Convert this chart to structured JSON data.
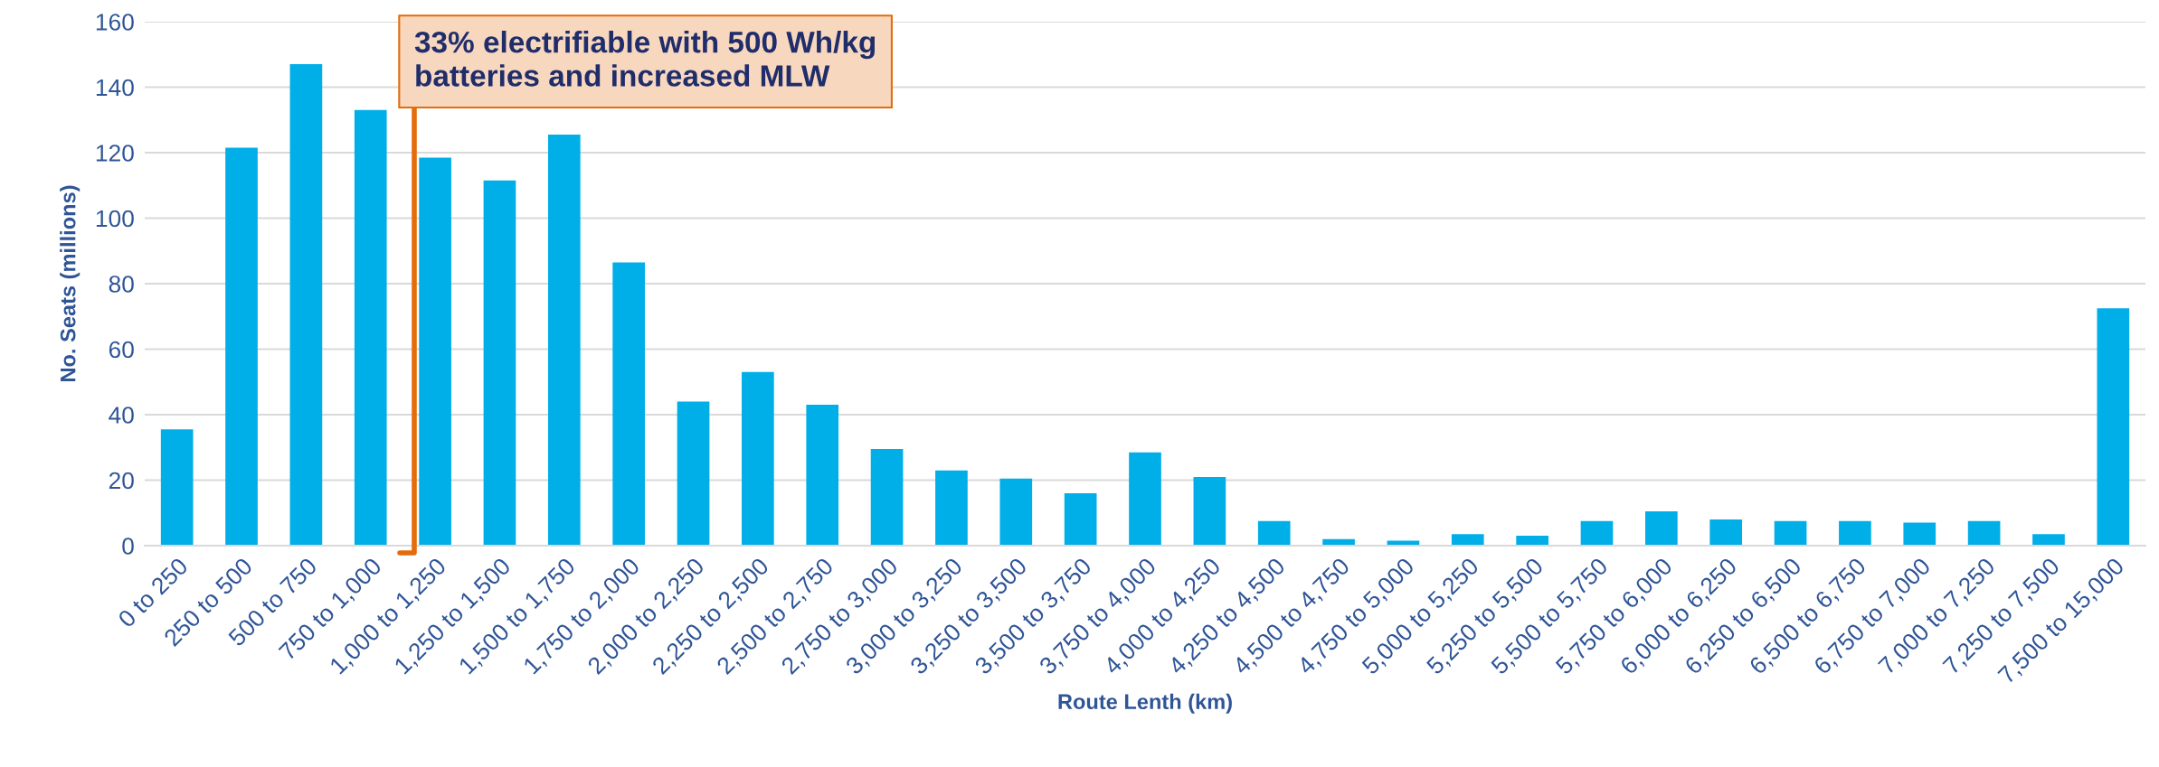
{
  "chart_data": {
    "type": "bar",
    "xlabel": "Route Lenth (km)",
    "ylabel": "No. Seats (millions)",
    "categories": [
      "0 to 250",
      "250 to 500",
      "500 to 750",
      "750 to 1,000",
      "1,000 to 1,250",
      "1,250 to 1,500",
      "1,500 to 1,750",
      "1,750 to 2,000",
      "2,000 to 2,250",
      "2,250 to 2,500",
      "2,500 to 2,750",
      "2,750 to 3,000",
      "3,000 to 3,250",
      "3,250 to 3,500",
      "3,500 to 3,750",
      "3,750 to 4,000",
      "4,000 to 4,250",
      "4,250 to 4,500",
      "4,500 to 4,750",
      "4,750 to 5,000",
      "5,000 to 5,250",
      "5,250 to 5,500",
      "5,500 to 5,750",
      "5,750 to 6,000",
      "6,000 to 6,250",
      "6,250 to 6,500",
      "6,500 to 6,750",
      "6,750 to 7,000",
      "7,000 to 7,250",
      "7,250 to 7,500",
      "7,500 to 15,000"
    ],
    "values": [
      35.5,
      121.5,
      147,
      133,
      118.5,
      111.5,
      125.5,
      86.5,
      44,
      53,
      43,
      29.5,
      23,
      20.5,
      16,
      28.5,
      21,
      7.5,
      2,
      1.5,
      3.5,
      3,
      7.5,
      10.5,
      8,
      7.5,
      7.5,
      7,
      7.5,
      3.5,
      72.5
    ],
    "color": "#00aee8",
    "ylim": [
      0,
      160
    ],
    "yticks": [
      0,
      20,
      40,
      60,
      80,
      100,
      120,
      140,
      160
    ],
    "grid": "y",
    "annotations": [
      "33% electrifiable with 500 Wh/kg\nbatteries and increased MLW"
    ]
  }
}
